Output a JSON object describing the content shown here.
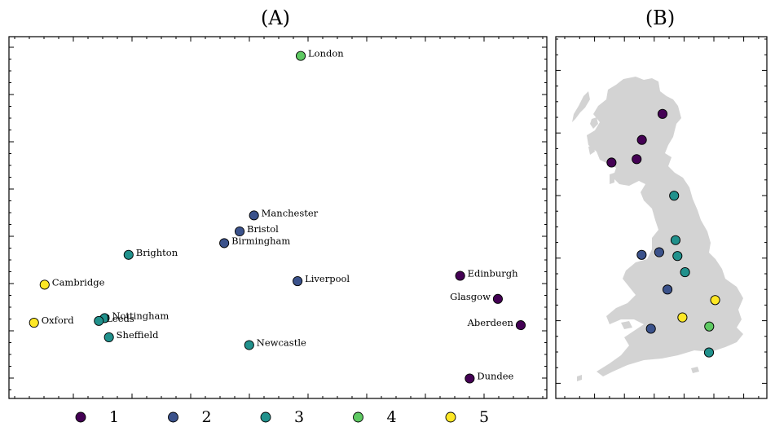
{
  "chart_data": [
    {
      "type": "scatter",
      "title": "(A)",
      "xlabel": "",
      "ylabel": "",
      "grid": false,
      "points": [
        {
          "name": "London",
          "x": 0.543,
          "y": 0.955,
          "cluster": 4
        },
        {
          "name": "Manchester",
          "x": 0.455,
          "y": 0.506,
          "cluster": 2
        },
        {
          "name": "Bristol",
          "x": 0.428,
          "y": 0.461,
          "cluster": 2
        },
        {
          "name": "Birmingham",
          "x": 0.399,
          "y": 0.428,
          "cluster": 2
        },
        {
          "name": "Brighton",
          "x": 0.219,
          "y": 0.395,
          "cluster": 3
        },
        {
          "name": "Liverpool",
          "x": 0.537,
          "y": 0.321,
          "cluster": 2
        },
        {
          "name": "Edinburgh",
          "x": 0.843,
          "y": 0.336,
          "cluster": 1
        },
        {
          "name": "Cambridge",
          "x": 0.061,
          "y": 0.311,
          "cluster": 5
        },
        {
          "name": "Glasgow",
          "x": 0.914,
          "y": 0.271,
          "cluster": 1
        },
        {
          "name": "Nottingham",
          "x": 0.174,
          "y": 0.217,
          "cluster": 3
        },
        {
          "name": "Leeds",
          "x": 0.163,
          "y": 0.209,
          "cluster": 3
        },
        {
          "name": "Oxford",
          "x": 0.041,
          "y": 0.204,
          "cluster": 5
        },
        {
          "name": "Aberdeen",
          "x": 0.957,
          "y": 0.197,
          "cluster": 1
        },
        {
          "name": "Sheffield",
          "x": 0.182,
          "y": 0.163,
          "cluster": 3
        },
        {
          "name": "Newcastle",
          "x": 0.446,
          "y": 0.141,
          "cluster": 3
        },
        {
          "name": "Dundee",
          "x": 0.861,
          "y": 0.047,
          "cluster": 1
        }
      ],
      "legend": {
        "placement": "bottom",
        "entries": [
          "1",
          "2",
          "3",
          "4",
          "5"
        ]
      }
    },
    {
      "type": "scatter",
      "title": "(B)",
      "subtype": "map",
      "points": [
        {
          "name": "Aberdeen",
          "lon": -2.1,
          "lat": 57.15,
          "cluster": 1
        },
        {
          "name": "Dundee",
          "lon": -2.97,
          "lat": 56.46,
          "cluster": 1
        },
        {
          "name": "Edinburgh",
          "lon": -3.19,
          "lat": 55.95,
          "cluster": 1
        },
        {
          "name": "Glasgow",
          "lon": -4.25,
          "lat": 55.86,
          "cluster": 1
        },
        {
          "name": "Newcastle",
          "lon": -1.61,
          "lat": 54.98,
          "cluster": 3
        },
        {
          "name": "Leeds",
          "lon": -1.55,
          "lat": 53.8,
          "cluster": 3
        },
        {
          "name": "Manchester",
          "lon": -2.24,
          "lat": 53.48,
          "cluster": 2
        },
        {
          "name": "Liverpool",
          "lon": -2.98,
          "lat": 53.41,
          "cluster": 2
        },
        {
          "name": "Sheffield",
          "lon": -1.47,
          "lat": 53.38,
          "cluster": 3
        },
        {
          "name": "Nottingham",
          "lon": -1.15,
          "lat": 52.95,
          "cluster": 3
        },
        {
          "name": "Birmingham",
          "lon": -1.89,
          "lat": 52.49,
          "cluster": 2
        },
        {
          "name": "Cambridge",
          "lon": 0.12,
          "lat": 52.21,
          "cluster": 5
        },
        {
          "name": "Oxford",
          "lon": -1.26,
          "lat": 51.75,
          "cluster": 5
        },
        {
          "name": "London",
          "lon": -0.13,
          "lat": 51.51,
          "cluster": 4
        },
        {
          "name": "Bristol",
          "lon": -2.59,
          "lat": 51.45,
          "cluster": 2
        },
        {
          "name": "Brighton",
          "lon": -0.14,
          "lat": 50.82,
          "cluster": 3
        }
      ]
    }
  ],
  "colors": {
    "1": "#440154",
    "2": "#3b528b",
    "3": "#21918c",
    "4": "#5ec962",
    "5": "#fde725",
    "land": "#d3d3d3"
  }
}
